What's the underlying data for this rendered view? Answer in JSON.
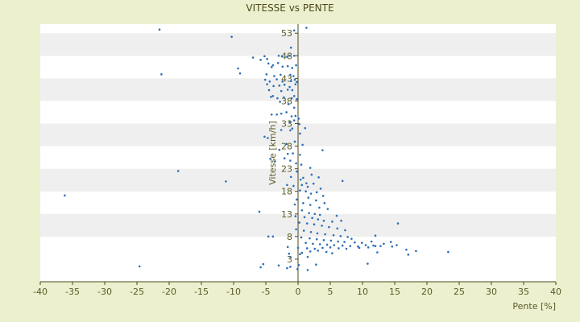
{
  "chart_data": {
    "type": "scatter",
    "title": "VITESSE vs PENTE",
    "xlabel": "Pente [%]",
    "ylabel": "Vitesse [km/h]",
    "xlim": [
      -40,
      40
    ],
    "ylim": [
      -2,
      55
    ],
    "x_ticks": [
      -40,
      -35,
      -30,
      -25,
      -20,
      -15,
      -10,
      -5,
      0,
      5,
      10,
      15,
      20,
      25,
      30,
      35,
      40
    ],
    "y_ticks": [
      3,
      8,
      13,
      18,
      23,
      28,
      33,
      38,
      43,
      48,
      53
    ],
    "grid": "horizontal alternating bands",
    "legend": "none",
    "colors": {
      "background": "#ecf0cf",
      "plot_band_light": "#ffffff",
      "plot_band_dark": "#efefef",
      "marker": "#2c6fb8",
      "axis": "#4d4a1b"
    },
    "series": [
      {
        "x": [
          -21.5,
          -10.3,
          -0.6,
          1.3,
          -1.1,
          -1.3,
          -7.0,
          -5.2,
          -5.8,
          -4.8,
          -2.5,
          -3.0,
          -1.7,
          -0.6,
          -4.6,
          -4.1,
          -3.9,
          -3.1,
          -2.4,
          -1.6,
          -0.9,
          -0.3,
          -9.3,
          -9.0,
          -21.2,
          -4.9,
          -3.7,
          -2.7,
          -1.2,
          -0.7,
          -5.1,
          -4.4,
          -3.3,
          -2.4,
          -1.1,
          -0.5,
          -0.2,
          -4.8,
          -3.8,
          -2.9,
          -2.1,
          -1.3,
          -0.4,
          -4.5,
          -2.6,
          -1.6,
          -0.9,
          -4.2,
          -3.9,
          -3.2,
          -2.2,
          -1.0,
          -0.6,
          -0.2,
          -2.8,
          -1.5,
          -4.1,
          -0.6,
          -3.3,
          -2.6,
          -1.8,
          -1.0,
          -0.4,
          0.1,
          -1.3,
          -0.6,
          0.2,
          -0.9,
          1.1,
          -5.2,
          -4.7,
          -2.6,
          -1.2,
          0.3,
          3.8,
          -1.8,
          -0.5,
          0.7,
          -2.9,
          -1.6,
          -0.8,
          0.3,
          -4.3,
          -3.6,
          -2.1,
          -1.2,
          -0.3,
          0.5,
          1.9,
          -18.6,
          -11.2,
          -0.2,
          0.8,
          2.1,
          3.2,
          -1.1,
          0.4,
          1.3,
          6.9,
          -1.7,
          -0.7,
          0.6,
          1.5,
          2.4,
          3.5,
          -36.2,
          0.3,
          1.2,
          2.0,
          2.9,
          3.9,
          -0.2,
          1.6,
          2.8,
          4.1,
          -0.5,
          0.8,
          1.9,
          3.3,
          4.6,
          -6.0,
          0.6,
          1.7,
          2.6,
          3.4,
          6.0,
          -0.4,
          1.0,
          2.2,
          3.1,
          4.0,
          5.3,
          6.7,
          15.5,
          0.2,
          1.4,
          2.5,
          3.7,
          4.8,
          6.1,
          7.3,
          -0.3,
          0.9,
          2.0,
          3.0,
          4.2,
          5.5,
          6.6,
          7.7,
          8.3,
          12.0,
          -4.6,
          -3.9,
          0.5,
          1.8,
          2.9,
          4.0,
          5.1,
          6.2,
          7.2,
          8.8,
          9.9,
          11.4,
          14.4,
          1.2,
          2.3,
          3.4,
          4.5,
          5.6,
          6.9,
          8.1,
          9.3,
          10.5,
          11.7,
          12.8,
          -1.6,
          0.0,
          1.4,
          2.6,
          3.8,
          5.0,
          6.3,
          7.5,
          9.5,
          10.9,
          12.0,
          13.3,
          14.6,
          15.3,
          16.8,
          18.3,
          23.3,
          0.6,
          1.9,
          3.1,
          4.4,
          5.3,
          12.3,
          17.1,
          -1.4,
          0.3,
          1.5,
          2.8,
          -5.4,
          -3.0,
          -1.2,
          0.1,
          -24.6,
          10.8,
          -5.8,
          -1.7,
          -0.1,
          -1.2,
          1.5
        ],
        "y": [
          53.8,
          52.2,
          53.6,
          54.2,
          49.8,
          48.0,
          47.6,
          47.9,
          47.1,
          47.3,
          47.9,
          48.0,
          47.8,
          48.0,
          46.3,
          45.5,
          45.9,
          46.4,
          45.6,
          45.7,
          45.3,
          45.9,
          45.2,
          44.1,
          43.9,
          43.9,
          43.5,
          43.8,
          43.8,
          43.5,
          42.7,
          42.3,
          42.8,
          42.3,
          42.4,
          42.7,
          42.2,
          41.7,
          41.3,
          41.4,
          41.6,
          41.1,
          41.7,
          40.4,
          40.2,
          40.5,
          40.4,
          38.9,
          39.1,
          38.6,
          38.8,
          38.6,
          39.1,
          38.4,
          37.8,
          37.3,
          35.0,
          36.5,
          35.0,
          35.2,
          35.5,
          34.6,
          34.7,
          34.1,
          33.3,
          33.7,
          32.9,
          31.9,
          32.0,
          30.1,
          29.8,
          31.6,
          31.5,
          30.8,
          27.1,
          28.5,
          29.0,
          28.3,
          27.2,
          26.3,
          26.4,
          26.1,
          25.2,
          24.6,
          25.3,
          24.8,
          24.2,
          23.9,
          23.2,
          22.5,
          20.2,
          22.4,
          21.0,
          21.7,
          21.1,
          21.2,
          20.6,
          19.8,
          20.3,
          19.4,
          19.2,
          19.4,
          19.0,
          19.7,
          18.6,
          17.1,
          18.2,
          18.0,
          17.5,
          17.8,
          17.0,
          16.2,
          16.6,
          16.0,
          15.4,
          15.1,
          15.4,
          15.0,
          14.4,
          14.1,
          13.5,
          13.8,
          13.2,
          13.0,
          12.8,
          12.6,
          12.5,
          12.3,
          12.1,
          11.8,
          11.5,
          11.3,
          11.5,
          10.9,
          11.1,
          10.9,
          10.7,
          10.4,
          10.1,
          9.8,
          9.4,
          9.6,
          9.3,
          9.0,
          8.7,
          8.5,
          8.3,
          8.1,
          7.9,
          7.5,
          8.2,
          8.0,
          8.0,
          7.8,
          7.6,
          7.4,
          7.2,
          7.1,
          6.9,
          6.8,
          6.7,
          6.6,
          6.9,
          6.8,
          6.6,
          6.4,
          6.3,
          6.2,
          6.1,
          6.0,
          5.9,
          5.8,
          6.1,
          6.0,
          5.9,
          5.7,
          5.5,
          5.4,
          5.3,
          5.5,
          5.6,
          5.4,
          5.3,
          5.5,
          5.6,
          5.9,
          6.4,
          5.8,
          6.1,
          5.1,
          4.8,
          4.6,
          4.4,
          4.7,
          4.9,
          4.6,
          4.3,
          4.5,
          4.0,
          4.2,
          4.1,
          3.5,
          1.8,
          1.9,
          1.6,
          1.3,
          1.7,
          1.4,
          2.0,
          1.2,
          1.0,
          0.8,
          3.5,
          0.6
        ]
      }
    ]
  }
}
